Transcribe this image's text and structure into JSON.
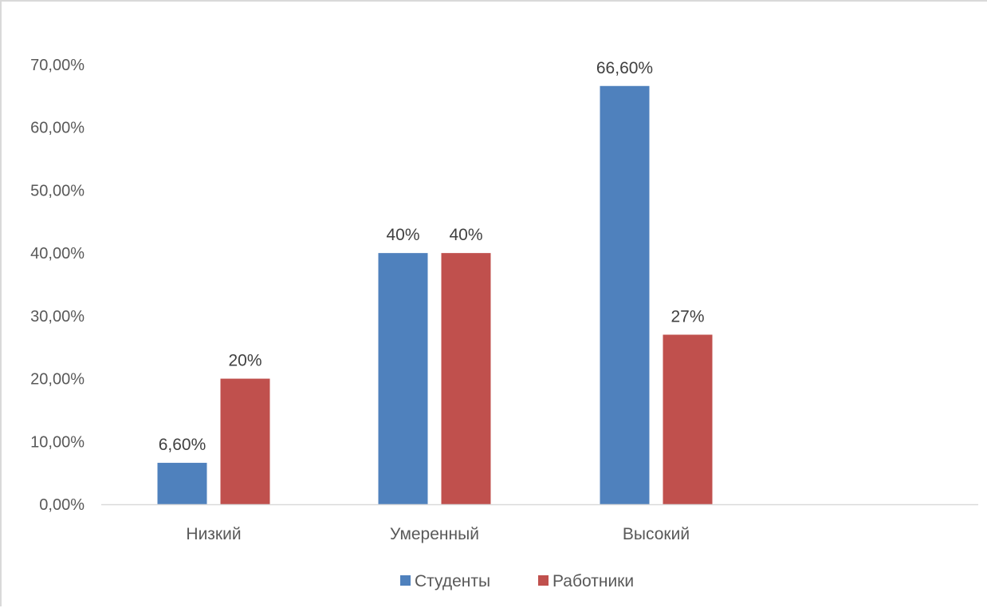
{
  "chart_data": {
    "type": "bar",
    "categories": [
      "Низкий",
      "Умеренный",
      "Высокий"
    ],
    "series": [
      {
        "name": "Студенты",
        "values": [
          6.6,
          40,
          66.6
        ],
        "labels": [
          "6,60%",
          "40%",
          "66,60%"
        ],
        "color": "#4f81bd"
      },
      {
        "name": "Работники",
        "values": [
          20,
          40,
          27
        ],
        "labels": [
          "20%",
          "40%",
          "27%"
        ],
        "color": "#c0504d"
      }
    ],
    "ylim": [
      0,
      70
    ],
    "yticks": [
      0,
      10,
      20,
      30,
      40,
      50,
      60,
      70
    ],
    "ytick_labels": [
      "0,00%",
      "10,00%",
      "20,00%",
      "30,00%",
      "40,00%",
      "50,00%",
      "60,00%",
      "70,00%"
    ],
    "title": "",
    "xlabel": "",
    "ylabel": "",
    "legend_position": "bottom",
    "axis_color": "#d9d9d9"
  }
}
